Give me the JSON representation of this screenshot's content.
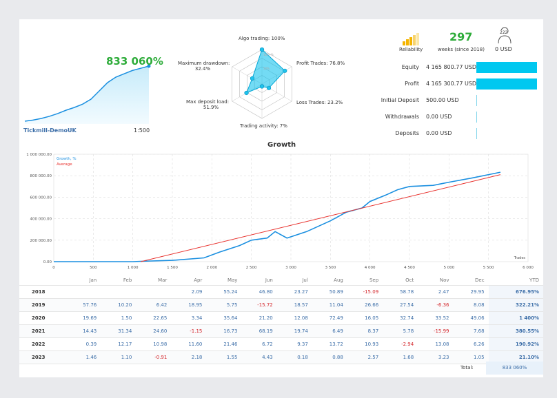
{
  "summary": {
    "growth_value": "833 060%",
    "broker": "Tickmill-DemoUK",
    "leverage": "1:500"
  },
  "radar": {
    "algo_trading": "Algo trading: 100%",
    "profit_trades": "Profit Trades: 76.8%",
    "loss_trades": "Loss Trades: 23.2%",
    "trading_activity": "Trading activity: 7%",
    "max_deposit_load_1": "Max deposit load:",
    "max_deposit_load_2": "51.9%",
    "max_drawdown_1": "Maximum drawdown:",
    "max_drawdown_2": "32.4%",
    "values": {
      "algo": 1.0,
      "profit": 0.768,
      "loss": 0.232,
      "activity": 0.07,
      "deposit": 0.519,
      "drawdown": 0.324
    },
    "ring_labels": [
      "100+%",
      "50%"
    ]
  },
  "stats": {
    "reliability_label": "Reliability",
    "weeks_value": "297",
    "weeks_label": "weeks (since 2018)",
    "subscribers_count": "222",
    "subscribers_value": "0 USD"
  },
  "metrics": [
    {
      "label": "Equity",
      "value": "4 165 800.77 USD",
      "fill": 1.0
    },
    {
      "label": "Profit",
      "value": "4 165 300.77 USD",
      "fill": 1.0
    },
    {
      "label": "Initial Deposit",
      "value": "500.00 USD",
      "fill": 0.0
    },
    {
      "label": "Withdrawals",
      "value": "0.00 USD",
      "fill": 0.0
    },
    {
      "label": "Deposits",
      "value": "0.00 USD",
      "fill": 0.0
    }
  ],
  "chart_data": {
    "type": "line",
    "title": "Growth",
    "xlabel": "Trades",
    "ylabel": "",
    "xlim": [
      0,
      6000
    ],
    "ylim": [
      0,
      1000000
    ],
    "x_ticks": [
      "0",
      "500",
      "1 000",
      "1 500",
      "2 000",
      "2 500",
      "3 000",
      "3 500",
      "4 000",
      "4 500",
      "5 000",
      "5 500",
      "6 000"
    ],
    "y_ticks": [
      "0.00",
      "200 000.00",
      "400 000.00",
      "600 000.00",
      "800 000.00",
      "1 000 000.00"
    ],
    "legend": [
      "Growth, %",
      "Average"
    ],
    "series": [
      {
        "name": "Growth, %",
        "color": "#1a8fe0",
        "x": [
          0,
          1000,
          1100,
          1500,
          1900,
          2100,
          2350,
          2500,
          2700,
          2800,
          2950,
          3200,
          3500,
          3700,
          3900,
          4000,
          4200,
          4350,
          4500,
          4800,
          5000,
          5300,
          5500,
          5650
        ],
        "y": [
          0,
          0,
          3000,
          12000,
          35000,
          90000,
          150000,
          200000,
          220000,
          280000,
          220000,
          280000,
          380000,
          460000,
          500000,
          560000,
          620000,
          670000,
          700000,
          710000,
          740000,
          780000,
          810000,
          833000
        ]
      },
      {
        "name": "Average",
        "color": "#e8322e",
        "x": [
          1100,
          5650
        ],
        "y": [
          0,
          810000
        ]
      }
    ]
  },
  "mini_chart_data": {
    "type": "area",
    "y": [
      0,
      2,
      5,
      9,
      14,
      20,
      25,
      31,
      40,
      55,
      70,
      80,
      86,
      92,
      96,
      100
    ]
  },
  "table": {
    "headers": [
      "",
      "Jan",
      "Feb",
      "Mar",
      "Apr",
      "May",
      "Jun",
      "Jul",
      "Aug",
      "Sep",
      "Oct",
      "Nov",
      "Dec",
      "YTD"
    ],
    "rows": [
      [
        "2018",
        "",
        "",
        "",
        "2.09",
        "55.24",
        "46.80",
        "23.27",
        "50.89",
        "-15.09",
        "58.78",
        "2.47",
        "29.95",
        "676.95%"
      ],
      [
        "2019",
        "57.76",
        "10.20",
        "6.42",
        "18.95",
        "5.75",
        "-15.72",
        "18.57",
        "11.04",
        "26.66",
        "27.54",
        "-6.36",
        "8.08",
        "322.21%"
      ],
      [
        "2020",
        "19.69",
        "1.50",
        "22.65",
        "3.34",
        "35.64",
        "21.20",
        "12.08",
        "72.49",
        "16.05",
        "32.74",
        "33.52",
        "49.06",
        "1 400%"
      ],
      [
        "2021",
        "14.43",
        "31.34",
        "24.60",
        "-1.15",
        "16.73",
        "68.19",
        "19.74",
        "6.49",
        "8.37",
        "5.78",
        "-15.99",
        "7.68",
        "380.55%"
      ],
      [
        "2022",
        "0.39",
        "12.17",
        "10.98",
        "11.60",
        "21.46",
        "6.72",
        "9.37",
        "13.72",
        "10.93",
        "-2.94",
        "13.08",
        "6.26",
        "190.92%"
      ],
      [
        "2023",
        "1.46",
        "1.10",
        "-0.91",
        "2.18",
        "1.55",
        "4.43",
        "0.18",
        "0.88",
        "2.57",
        "1.68",
        "3.23",
        "1.05",
        "21.10%"
      ]
    ],
    "total_label": "Total:",
    "total_value": "833 060%"
  }
}
